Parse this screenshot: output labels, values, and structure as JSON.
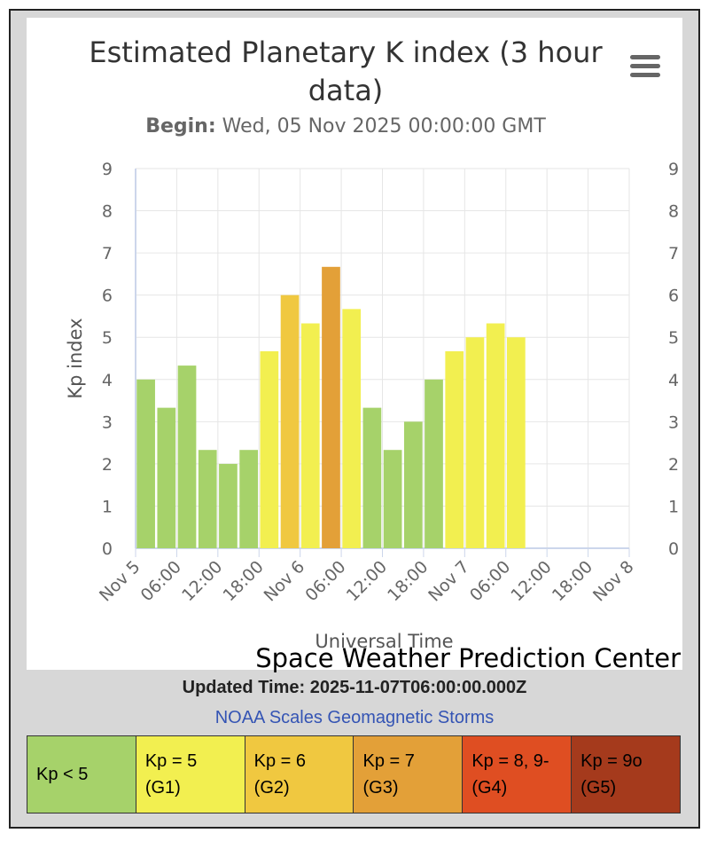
{
  "header": {
    "title_line1": "Estimated Planetary K index (3 hour",
    "title_line2": "data)",
    "subtitle_label": "Begin:",
    "subtitle_value": "Wed, 05 Nov 2025 00:00:00 GMT",
    "menu_icon": "hamburger-menu-icon"
  },
  "credit": "Space Weather Prediction Center",
  "footer": {
    "updated": "Updated Time: 2025-11-07T06:00:00.000Z",
    "scales_link": "NOAA Scales Geomagnetic Storms"
  },
  "legend": [
    {
      "label": "Kp < 5",
      "color": "#a6d26a"
    },
    {
      "label": "Kp = 5 (G1)",
      "color": "#f2ef50"
    },
    {
      "label": "Kp = 6 (G2)",
      "color": "#f0c840"
    },
    {
      "label": "Kp = 7 (G3)",
      "color": "#e3a038"
    },
    {
      "label": "Kp = 8, 9- (G4)",
      "color": "#df4e22"
    },
    {
      "label": "Kp = 9o (G5)",
      "color": "#a53a1c"
    }
  ],
  "chart_data": {
    "type": "bar",
    "title": "Estimated Planetary K index (3 hour data)",
    "subtitle": "Begin: Wed, 05 Nov 2025 00:00:00 GMT",
    "xlabel": "Universal Time",
    "ylabel": "Kp index",
    "ylim": [
      0,
      9
    ],
    "yticks": [
      "0",
      "1",
      "2",
      "3",
      "4",
      "5",
      "6",
      "7",
      "8",
      "9"
    ],
    "grid": true,
    "xticks": [
      "Nov 5",
      "06:00",
      "12:00",
      "18:00",
      "Nov 6",
      "06:00",
      "12:00",
      "18:00",
      "Nov 7",
      "06:00",
      "12:00",
      "18:00",
      "Nov 8"
    ],
    "categories": [
      "2025-11-05 00:00",
      "2025-11-05 03:00",
      "2025-11-05 06:00",
      "2025-11-05 09:00",
      "2025-11-05 12:00",
      "2025-11-05 15:00",
      "2025-11-05 18:00",
      "2025-11-05 21:00",
      "2025-11-06 00:00",
      "2025-11-06 03:00",
      "2025-11-06 06:00",
      "2025-11-06 09:00",
      "2025-11-06 12:00",
      "2025-11-06 15:00",
      "2025-11-06 18:00",
      "2025-11-06 21:00",
      "2025-11-07 00:00",
      "2025-11-07 03:00",
      "2025-11-07 06:00"
    ],
    "values": [
      4.0,
      3.33,
      4.33,
      2.33,
      2.0,
      2.33,
      4.67,
      6.0,
      5.33,
      6.67,
      5.67,
      3.33,
      2.33,
      3.0,
      4.0,
      4.67,
      5.0,
      5.33,
      5.0
    ],
    "colors": [
      "#a6d26a",
      "#a6d26a",
      "#a6d26a",
      "#a6d26a",
      "#a6d26a",
      "#a6d26a",
      "#f2ef50",
      "#f0c840",
      "#f2ef50",
      "#e3a038",
      "#f2ef50",
      "#a6d26a",
      "#a6d26a",
      "#a6d26a",
      "#a6d26a",
      "#f2ef50",
      "#f2ef50",
      "#f2ef50",
      "#f2ef50"
    ]
  }
}
